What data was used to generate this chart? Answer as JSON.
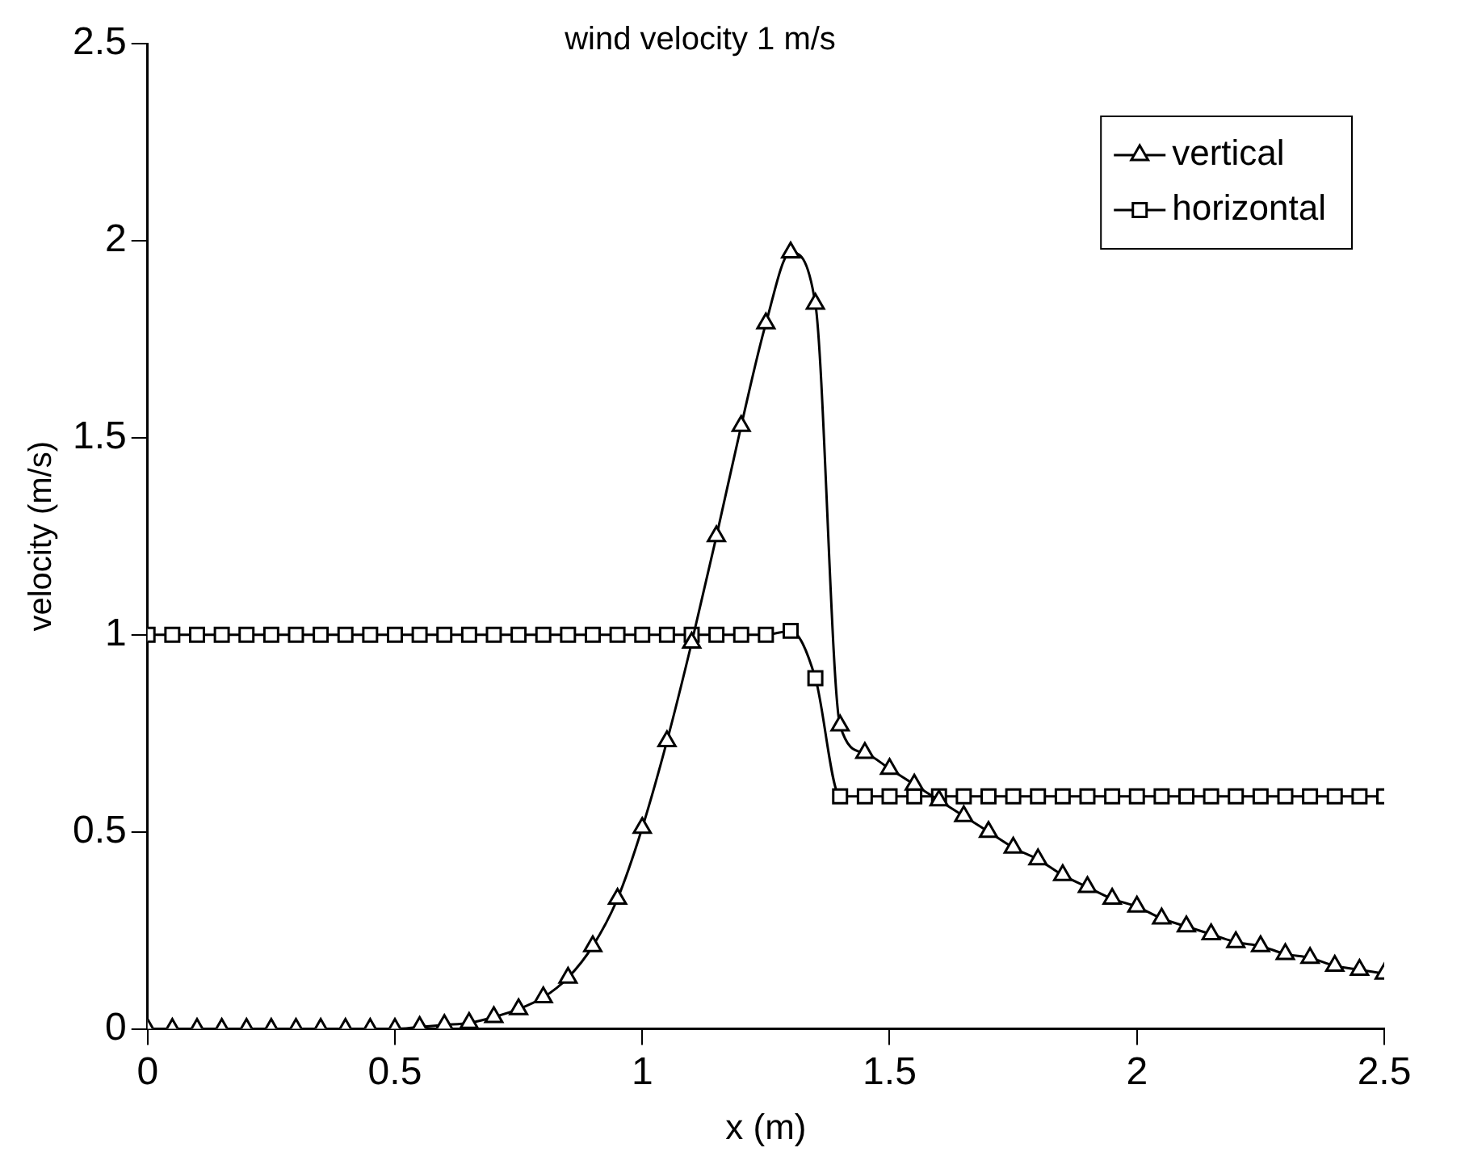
{
  "chart_data": {
    "type": "line",
    "title": "wind velocity 1 m/s",
    "xlabel": "x (m)",
    "ylabel": "velocity (m/s)",
    "x": [
      0,
      0.05,
      0.1,
      0.15,
      0.2,
      0.25,
      0.3,
      0.35,
      0.4,
      0.45,
      0.5,
      0.55,
      0.6,
      0.65,
      0.7,
      0.75,
      0.8,
      0.85,
      0.9,
      0.95,
      1,
      1.05,
      1.1,
      1.15,
      1.2,
      1.25,
      1.3,
      1.35,
      1.4,
      1.45,
      1.5,
      1.55,
      1.6,
      1.65,
      1.7,
      1.75,
      1.8,
      1.85,
      1.9,
      1.95,
      2,
      2.05,
      2.1,
      2.15,
      2.2,
      2.25,
      2.3,
      2.35,
      2.4,
      2.45,
      2.5
    ],
    "series": [
      {
        "name": "vertical",
        "color": "#000000",
        "marker": "triangle",
        "values": [
          0,
          0,
          0,
          0,
          0,
          0,
          0,
          0,
          0,
          0,
          0,
          0.005,
          0.01,
          0.015,
          0.03,
          0.05,
          0.08,
          0.13,
          0.21,
          0.33,
          0.51,
          0.73,
          0.98,
          1.25,
          1.53,
          1.79,
          1.97,
          1.84,
          0.77,
          0.7,
          0.66,
          0.62,
          0.58,
          0.54,
          0.5,
          0.46,
          0.43,
          0.39,
          0.36,
          0.33,
          0.31,
          0.28,
          0.26,
          0.24,
          0.22,
          0.21,
          0.19,
          0.18,
          0.16,
          0.15,
          0.14
        ]
      },
      {
        "name": "horizontal",
        "color": "#000000",
        "marker": "square",
        "values": [
          1,
          1,
          1,
          1,
          1,
          1,
          1,
          1,
          1,
          1,
          1,
          1,
          1,
          1,
          1,
          1,
          1,
          1,
          1,
          1,
          1,
          1,
          1,
          1,
          1,
          1,
          1.01,
          0.89,
          0.59,
          0.59,
          0.59,
          0.59,
          0.59,
          0.59,
          0.59,
          0.59,
          0.59,
          0.59,
          0.59,
          0.59,
          0.59,
          0.59,
          0.59,
          0.59,
          0.59,
          0.59,
          0.59,
          0.59,
          0.59,
          0.59,
          0.59
        ]
      }
    ],
    "xlim": [
      0,
      2.5
    ],
    "xticks": [
      0,
      0.5,
      1,
      1.5,
      2,
      2.5
    ],
    "ylim": [
      0,
      2.5
    ],
    "yticks": [
      0,
      0.5,
      1,
      1.5,
      2,
      2.5
    ],
    "grid": false,
    "legend": "top right",
    "line_style": "solid"
  }
}
